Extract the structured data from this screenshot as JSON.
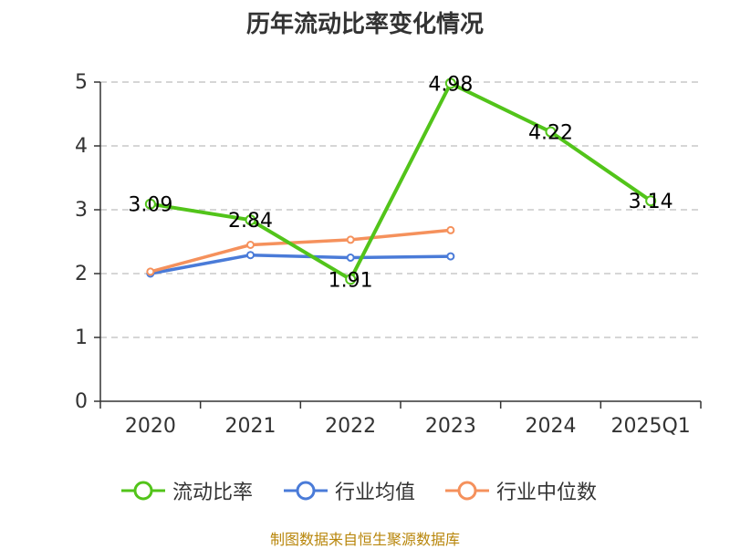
{
  "title": "历年流动比率变化情况",
  "footer": "制图数据来自恒生聚源数据库",
  "colors": {
    "current_ratio": "#52c41a",
    "industry_mean": "#4a7bd8",
    "industry_median": "#f5915c",
    "grid": "#c8c8c8",
    "axis": "#333333"
  },
  "chart_data": {
    "type": "line",
    "title": "历年流动比率变化情况",
    "categories": [
      "2020",
      "2021",
      "2022",
      "2023",
      "2024",
      "2025Q1"
    ],
    "ylim": [
      0,
      5
    ],
    "yticks": [
      0,
      1,
      2,
      3,
      4,
      5
    ],
    "grid": true,
    "legend_position": "bottom",
    "series": [
      {
        "name": "流动比率",
        "color": "#52c41a",
        "values": [
          3.09,
          2.84,
          1.91,
          4.98,
          4.22,
          3.14
        ],
        "data_labels": [
          "3.09",
          "2.84",
          "1.91",
          "4.98",
          "4.22",
          "3.14"
        ]
      },
      {
        "name": "行业均值",
        "color": "#4a7bd8",
        "values": [
          2.0,
          2.29,
          2.25,
          2.27,
          null,
          null
        ]
      },
      {
        "name": "行业中位数",
        "color": "#f5915c",
        "values": [
          2.03,
          2.45,
          2.53,
          2.68,
          null,
          null
        ]
      }
    ]
  }
}
